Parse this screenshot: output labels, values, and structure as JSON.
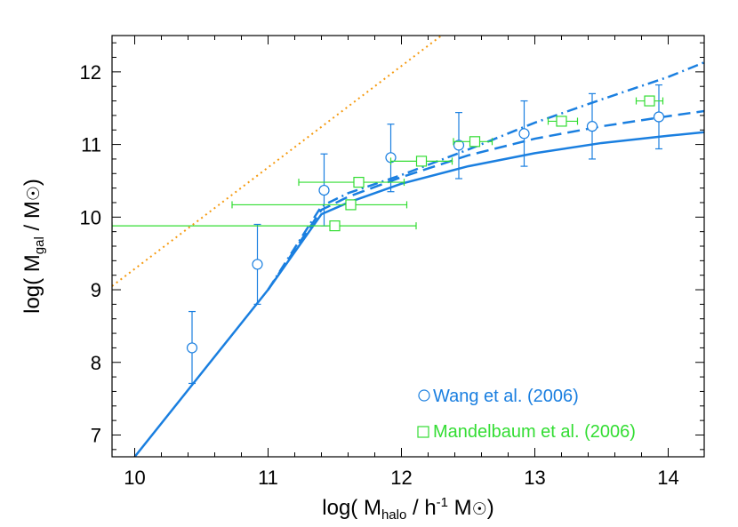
{
  "chart_data": {
    "type": "scatter",
    "xlabel": "log( M_halo / h^-1 M_☉)",
    "ylabel": "log( M_gal / M_☉)",
    "xlim": [
      9.83,
      14.27
    ],
    "ylim": [
      6.7,
      12.5
    ],
    "x_ticks": [
      10,
      11,
      12,
      13,
      14
    ],
    "y_ticks": [
      7,
      8,
      9,
      10,
      11,
      12
    ],
    "x_tick_labels": [
      "10",
      "11",
      "12",
      "13",
      "14"
    ],
    "y_tick_labels": [
      "7",
      "8",
      "9",
      "10",
      "11",
      "12"
    ],
    "grid": false,
    "legend_position": "bottom-right",
    "colors": {
      "blue": "#1a7fe0",
      "green": "#33dd33",
      "orange": "#f59a10"
    },
    "legend": [
      {
        "label": "Wang et al. (2006)",
        "marker": "circle",
        "color": "#1a7fe0"
      },
      {
        "label": "Mandelbaum et al. (2006)",
        "marker": "square",
        "color": "#33dd33"
      }
    ],
    "series": [
      {
        "name": "Wang et al. (2006)",
        "style": "circle-errorbar",
        "color": "#1a7fe0",
        "points": [
          {
            "x": 10.43,
            "y": 8.2,
            "ylo": 7.71,
            "yhi": 8.7
          },
          {
            "x": 10.92,
            "y": 9.35,
            "ylo": 8.8,
            "yhi": 9.9
          },
          {
            "x": 11.42,
            "y": 10.37,
            "ylo": 9.88,
            "yhi": 10.87
          },
          {
            "x": 11.92,
            "y": 10.82,
            "ylo": 10.35,
            "yhi": 11.28
          },
          {
            "x": 12.43,
            "y": 10.99,
            "ylo": 10.53,
            "yhi": 11.44
          },
          {
            "x": 12.92,
            "y": 11.15,
            "ylo": 10.7,
            "yhi": 11.6
          },
          {
            "x": 13.43,
            "y": 11.25,
            "ylo": 10.8,
            "yhi": 11.7
          },
          {
            "x": 13.93,
            "y": 11.38,
            "ylo": 10.94,
            "yhi": 11.82
          }
        ]
      },
      {
        "name": "Mandelbaum et al. (2006)",
        "style": "square-errorbar",
        "color": "#33dd33",
        "points": [
          {
            "x": 11.5,
            "y": 9.88,
            "xlo": 9.83,
            "xhi": 12.11
          },
          {
            "x": 11.62,
            "y": 10.17,
            "xlo": 10.73,
            "xhi": 12.04
          },
          {
            "x": 11.68,
            "y": 10.48,
            "xlo": 11.23,
            "xhi": 12.02
          },
          {
            "x": 12.15,
            "y": 10.77,
            "xlo": 11.92,
            "xhi": 12.38
          },
          {
            "x": 12.55,
            "y": 11.04,
            "xlo": 12.39,
            "xhi": 12.68
          },
          {
            "x": 13.2,
            "y": 11.32,
            "xlo": 13.1,
            "xhi": 13.32
          },
          {
            "x": 13.86,
            "y": 11.6,
            "xlo": 13.76,
            "xhi": 13.96
          }
        ]
      },
      {
        "style": "solid-line",
        "color": "#1a7fe0",
        "x": [
          10.0,
          10.5,
          11.0,
          11.4,
          11.6,
          12.0,
          12.5,
          13.0,
          13.5,
          14.0,
          14.27
        ],
        "y": [
          6.7,
          7.85,
          9.0,
          10.04,
          10.2,
          10.46,
          10.7,
          10.88,
          11.02,
          11.12,
          11.17
        ]
      },
      {
        "style": "dashed-line",
        "color": "#1a7fe0",
        "x": [
          11.0,
          11.4,
          11.6,
          12.0,
          12.5,
          13.0,
          13.5,
          14.0,
          14.27
        ],
        "y": [
          9.0,
          10.1,
          10.28,
          10.55,
          10.85,
          11.08,
          11.25,
          11.39,
          11.46
        ]
      },
      {
        "style": "dash-dot-line",
        "color": "#1a7fe0",
        "x": [
          11.0,
          11.4,
          11.6,
          12.0,
          12.5,
          13.0,
          13.5,
          14.0,
          14.27
        ],
        "y": [
          9.0,
          10.15,
          10.33,
          10.58,
          10.93,
          11.3,
          11.62,
          11.93,
          12.13
        ]
      },
      {
        "style": "dotted-line",
        "color": "#f59a10",
        "x": [
          9.83,
          12.3
        ],
        "y": [
          9.05,
          12.5
        ]
      }
    ]
  }
}
